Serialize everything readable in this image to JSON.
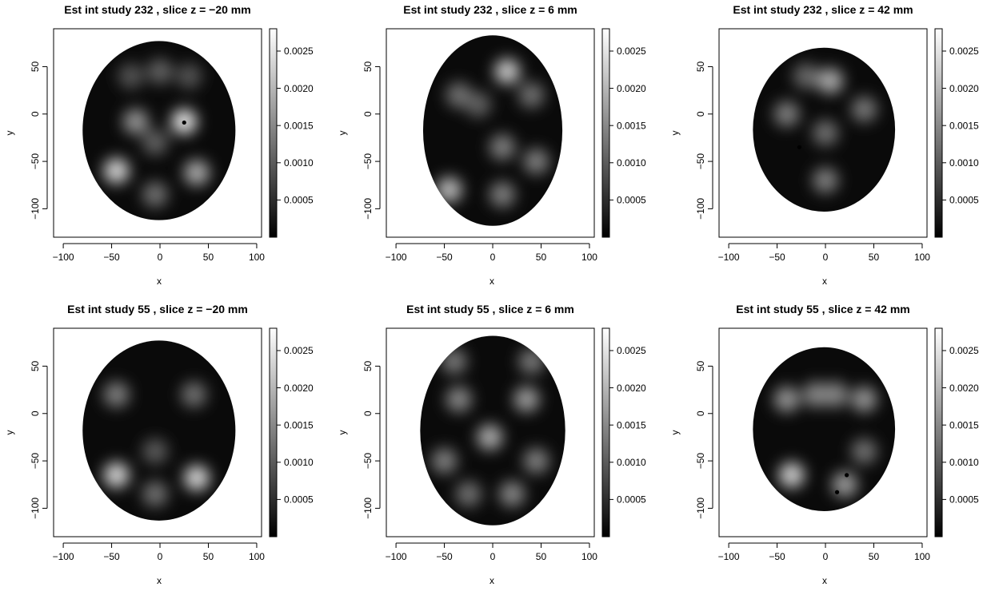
{
  "chart_data": [
    {
      "type": "heatmap",
      "title": "Est int study 232 , slice z =  −20 mm",
      "study": "232",
      "z_mm": -20,
      "xlabel": "x",
      "ylabel": "y",
      "xlim": [
        -110,
        105
      ],
      "ylim": [
        -130,
        90
      ],
      "xticks": [
        -100,
        -50,
        0,
        50,
        100
      ],
      "yticks": [
        -100,
        -50,
        0,
        50
      ],
      "colorbar": {
        "min": 0,
        "max": 0.0028,
        "ticks": [
          "0.0005",
          "0.0010",
          "0.0015",
          "0.0020",
          "0.0025"
        ]
      },
      "brain_extent": {
        "x": [
          -80,
          78
        ],
        "y": [
          -112,
          77
        ]
      },
      "hotspots": [
        {
          "x": -45,
          "y": -60,
          "intensity": 0.0024
        },
        {
          "x": 25,
          "y": -8,
          "intensity": 0.0026
        },
        {
          "x": -25,
          "y": -8,
          "intensity": 0.0015
        },
        {
          "x": 38,
          "y": -62,
          "intensity": 0.0018
        },
        {
          "x": -5,
          "y": -85,
          "intensity": 0.001
        },
        {
          "x": -30,
          "y": 40,
          "intensity": 0.0006
        },
        {
          "x": 30,
          "y": 40,
          "intensity": 0.0006
        },
        {
          "x": 0,
          "y": 45,
          "intensity": 0.0008
        },
        {
          "x": -5,
          "y": -30,
          "intensity": 0.0008
        }
      ],
      "points": [
        {
          "x": 25,
          "y": -9
        }
      ]
    },
    {
      "type": "heatmap",
      "title": "Est int study 232 , slice z =  6 mm",
      "study": "232",
      "z_mm": 6,
      "xlabel": "x",
      "ylabel": "y",
      "xlim": [
        -110,
        105
      ],
      "ylim": [
        -130,
        90
      ],
      "xticks": [
        -100,
        -50,
        0,
        50,
        100
      ],
      "yticks": [
        -100,
        -50,
        0,
        50
      ],
      "colorbar": {
        "min": 0,
        "max": 0.0028,
        "ticks": [
          "0.0005",
          "0.0010",
          "0.0015",
          "0.0020",
          "0.0025"
        ]
      },
      "brain_extent": {
        "x": [
          -72,
          72
        ],
        "y": [
          -118,
          83
        ]
      },
      "hotspots": [
        {
          "x": 15,
          "y": 45,
          "intensity": 0.0022
        },
        {
          "x": -45,
          "y": -80,
          "intensity": 0.002
        },
        {
          "x": -35,
          "y": 20,
          "intensity": 0.001
        },
        {
          "x": 40,
          "y": 20,
          "intensity": 0.001
        },
        {
          "x": 45,
          "y": -50,
          "intensity": 0.0012
        },
        {
          "x": 10,
          "y": -85,
          "intensity": 0.0012
        },
        {
          "x": 10,
          "y": -35,
          "intensity": 0.0012
        },
        {
          "x": -15,
          "y": 10,
          "intensity": 0.0008
        }
      ],
      "points": []
    },
    {
      "type": "heatmap",
      "title": "Est int study 232 , slice z =  42 mm",
      "study": "232",
      "z_mm": 42,
      "xlabel": "x",
      "ylabel": "y",
      "xlim": [
        -110,
        105
      ],
      "ylim": [
        -130,
        90
      ],
      "xticks": [
        -100,
        -50,
        0,
        50,
        100
      ],
      "yticks": [
        -100,
        -50,
        0,
        50
      ],
      "colorbar": {
        "min": 0,
        "max": 0.0028,
        "ticks": [
          "0.0005",
          "0.0010",
          "0.0015",
          "0.0020",
          "0.0025"
        ]
      },
      "brain_extent": {
        "x": [
          -75,
          72
        ],
        "y": [
          -103,
          70
        ]
      },
      "hotspots": [
        {
          "x": 5,
          "y": 35,
          "intensity": 0.0018
        },
        {
          "x": -40,
          "y": 0,
          "intensity": 0.0012
        },
        {
          "x": 40,
          "y": 5,
          "intensity": 0.0011
        },
        {
          "x": 0,
          "y": -70,
          "intensity": 0.0012
        },
        {
          "x": 0,
          "y": -20,
          "intensity": 0.001
        },
        {
          "x": -20,
          "y": 40,
          "intensity": 0.0009
        }
      ],
      "points": [
        {
          "x": -27,
          "y": -35,
          "dark": true
        }
      ]
    },
    {
      "type": "heatmap",
      "title": "Est int study 55 , slice z =  −20 mm",
      "study": "55",
      "z_mm": -20,
      "xlabel": "x",
      "ylabel": "y",
      "xlim": [
        -110,
        105
      ],
      "ylim": [
        -130,
        90
      ],
      "xticks": [
        -100,
        -50,
        0,
        50,
        100
      ],
      "yticks": [
        -100,
        -50,
        0,
        50
      ],
      "colorbar": {
        "min": 0,
        "max": 0.0028,
        "ticks": [
          "0.0005",
          "0.0010",
          "0.0015",
          "0.0020",
          "0.0025"
        ]
      },
      "brain_extent": {
        "x": [
          -80,
          78
        ],
        "y": [
          -113,
          77
        ]
      },
      "hotspots": [
        {
          "x": -45,
          "y": -65,
          "intensity": 0.0024
        },
        {
          "x": 38,
          "y": -68,
          "intensity": 0.0024
        },
        {
          "x": -45,
          "y": 20,
          "intensity": 0.0012
        },
        {
          "x": 35,
          "y": 20,
          "intensity": 0.001
        },
        {
          "x": -5,
          "y": -85,
          "intensity": 0.001
        },
        {
          "x": -5,
          "y": -40,
          "intensity": 0.0007
        }
      ],
      "points": []
    },
    {
      "type": "heatmap",
      "title": "Est int study 55 , slice z =  6 mm",
      "study": "55",
      "z_mm": 6,
      "xlabel": "x",
      "ylabel": "y",
      "xlim": [
        -110,
        105
      ],
      "ylim": [
        -130,
        90
      ],
      "xticks": [
        -100,
        -50,
        0,
        50,
        100
      ],
      "yticks": [
        -100,
        -50,
        0,
        50
      ],
      "colorbar": {
        "min": 0,
        "max": 0.0028,
        "ticks": [
          "0.0005",
          "0.0010",
          "0.0015",
          "0.0020",
          "0.0025"
        ]
      },
      "brain_extent": {
        "x": [
          -75,
          75
        ],
        "y": [
          -118,
          82
        ]
      },
      "hotspots": [
        {
          "x": -3,
          "y": -25,
          "intensity": 0.0018
        },
        {
          "x": 35,
          "y": 15,
          "intensity": 0.0016
        },
        {
          "x": -35,
          "y": 15,
          "intensity": 0.0013
        },
        {
          "x": -40,
          "y": 55,
          "intensity": 0.0011
        },
        {
          "x": 40,
          "y": 55,
          "intensity": 0.0011
        },
        {
          "x": -50,
          "y": -50,
          "intensity": 0.0012
        },
        {
          "x": 45,
          "y": -50,
          "intensity": 0.0012
        },
        {
          "x": 20,
          "y": -85,
          "intensity": 0.0013
        },
        {
          "x": -25,
          "y": -85,
          "intensity": 0.001
        }
      ],
      "points": []
    },
    {
      "type": "heatmap",
      "title": "Est int study 55 , slice z =  42 mm",
      "study": "55",
      "z_mm": 42,
      "xlabel": "x",
      "ylabel": "y",
      "xlim": [
        -110,
        105
      ],
      "ylim": [
        -130,
        90
      ],
      "xticks": [
        -100,
        -50,
        0,
        50,
        100
      ],
      "yticks": [
        -100,
        -50,
        0,
        50
      ],
      "colorbar": {
        "min": 0,
        "max": 0.0028,
        "ticks": [
          "0.0005",
          "0.0010",
          "0.0015",
          "0.0020",
          "0.0025"
        ]
      },
      "brain_extent": {
        "x": [
          -75,
          72
        ],
        "y": [
          -103,
          70
        ]
      },
      "hotspots": [
        {
          "x": -35,
          "y": -65,
          "intensity": 0.0023
        },
        {
          "x": 20,
          "y": -75,
          "intensity": 0.0016
        },
        {
          "x": -40,
          "y": 15,
          "intensity": 0.0015
        },
        {
          "x": 40,
          "y": 15,
          "intensity": 0.0015
        },
        {
          "x": -10,
          "y": 20,
          "intensity": 0.0013
        },
        {
          "x": 10,
          "y": 20,
          "intensity": 0.0013
        },
        {
          "x": 40,
          "y": -40,
          "intensity": 0.001
        }
      ],
      "points": [
        {
          "x": 22,
          "y": -65
        },
        {
          "x": 12,
          "y": -83
        }
      ]
    }
  ]
}
